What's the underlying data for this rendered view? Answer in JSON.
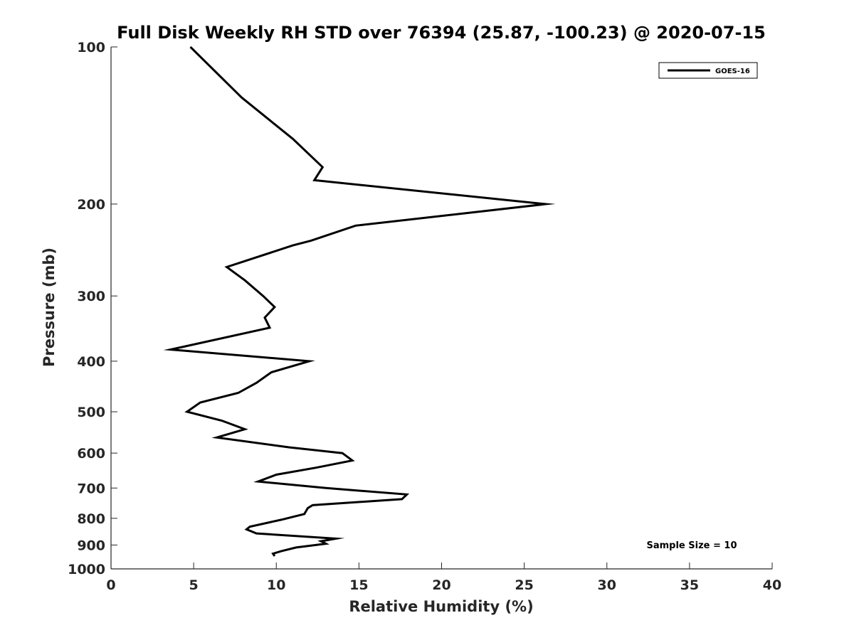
{
  "chart_data": {
    "type": "line",
    "title": "Full Disk Weekly RH STD over 76394 (25.87, -100.23) @ 2020-07-15",
    "xlabel": "Relative Humidity (%)",
    "ylabel": "Pressure (mb)",
    "xlim": [
      0,
      40
    ],
    "ylim": [
      100,
      1000
    ],
    "yscale": "log",
    "y_reversed": true,
    "x_ticks": [
      0,
      5,
      10,
      15,
      20,
      25,
      30,
      35,
      40
    ],
    "y_ticks": [
      100,
      200,
      300,
      400,
      500,
      600,
      700,
      800,
      900,
      1000
    ],
    "grid": false,
    "legend_position": "top-right",
    "annotation": "Sample Size = 10",
    "series": [
      {
        "name": "GOES-16",
        "color": "#000000",
        "points": [
          [
            4.8,
            100
          ],
          [
            7.9,
            125
          ],
          [
            11.0,
            150
          ],
          [
            12.8,
            170
          ],
          [
            12.3,
            180
          ],
          [
            26.3,
            200
          ],
          [
            14.8,
            220
          ],
          [
            12.1,
            235
          ],
          [
            11.0,
            240
          ],
          [
            7.0,
            264
          ],
          [
            8.1,
            280
          ],
          [
            9.2,
            300
          ],
          [
            9.9,
            315
          ],
          [
            9.3,
            330
          ],
          [
            9.6,
            345
          ],
          [
            3.6,
            380
          ],
          [
            12.0,
            400
          ],
          [
            9.7,
            420
          ],
          [
            8.8,
            440
          ],
          [
            7.7,
            460
          ],
          [
            5.4,
            480
          ],
          [
            4.6,
            500
          ],
          [
            6.7,
            520
          ],
          [
            8.1,
            540
          ],
          [
            6.4,
            560
          ],
          [
            10.8,
            585
          ],
          [
            14.0,
            600
          ],
          [
            14.6,
            620
          ],
          [
            12.4,
            640
          ],
          [
            10.0,
            660
          ],
          [
            8.9,
            680
          ],
          [
            13.0,
            700
          ],
          [
            17.9,
            720
          ],
          [
            17.6,
            735
          ],
          [
            12.2,
            755
          ],
          [
            11.9,
            765
          ],
          [
            11.7,
            785
          ],
          [
            10.3,
            805
          ],
          [
            8.4,
            830
          ],
          [
            8.2,
            840
          ],
          [
            8.8,
            855
          ],
          [
            13.6,
            875
          ],
          [
            12.7,
            885
          ],
          [
            13.0,
            895
          ],
          [
            11.2,
            910
          ],
          [
            10.3,
            925
          ],
          [
            9.8,
            935
          ],
          [
            9.9,
            945
          ]
        ]
      }
    ]
  }
}
